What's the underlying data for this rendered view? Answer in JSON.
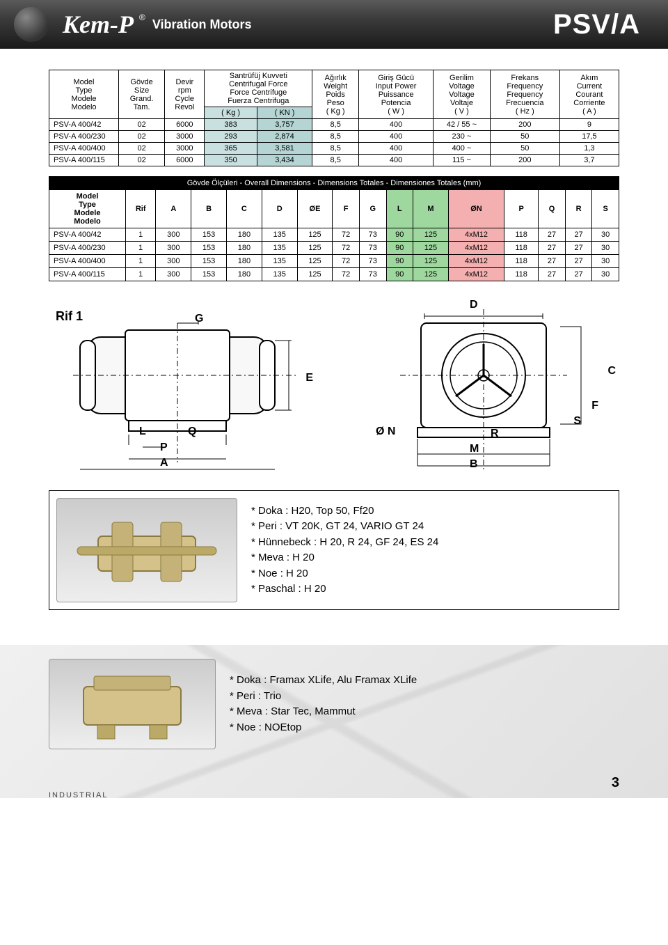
{
  "header": {
    "logo": "Kem-P",
    "reg_mark": "®",
    "subtitle": "Vibration Motors",
    "product_code": "PSV/A"
  },
  "specs_table": {
    "header_rows": {
      "model": [
        "Model",
        "Type",
        "Modele",
        "Modelo"
      ],
      "size": [
        "Gövde",
        "Size",
        "Grand.",
        "Tam."
      ],
      "rpm": [
        "Devir",
        "rpm",
        "Cycle",
        "Revol"
      ],
      "force": [
        "Santrüfüj Kuvveti",
        "Centrifugal Force",
        "Force Centrifuge",
        "Fuerza Centrifuga"
      ],
      "force_units": [
        "( Kg )",
        "( KN )"
      ],
      "weight": [
        "Ağırlık",
        "Weight",
        "Poids",
        "Peso",
        "( Kg )"
      ],
      "power": [
        "Giriş Gücü",
        "Input Power",
        "Puissance",
        "Potencia",
        "( W )"
      ],
      "voltage": [
        "Gerilim",
        "Voltage",
        "Voltage",
        "Voltaje",
        "( V )"
      ],
      "freq": [
        "Frekans",
        "Frequency",
        "Frequency",
        "Frecuencia",
        "( Hz )"
      ],
      "current": [
        "Akım",
        "Current",
        "Courant",
        "Corriente",
        "( A )"
      ]
    },
    "rows": [
      {
        "model": "PSV-A 400/42",
        "size": "02",
        "rpm": "6000",
        "kg": "383",
        "kn": "3,757",
        "weight": "8,5",
        "power": "400",
        "voltage": "42 / 55 ~",
        "freq": "200",
        "current": "9"
      },
      {
        "model": "PSV-A 400/230",
        "size": "02",
        "rpm": "3000",
        "kg": "293",
        "kn": "2,874",
        "weight": "8,5",
        "power": "400",
        "voltage": "230 ~",
        "freq": "50",
        "current": "17,5"
      },
      {
        "model": "PSV-A 400/400",
        "size": "02",
        "rpm": "3000",
        "kg": "365",
        "kn": "3,581",
        "weight": "8,5",
        "power": "400",
        "voltage": "400 ~",
        "freq": "50",
        "current": "1,3"
      },
      {
        "model": "PSV-A 400/115",
        "size": "02",
        "rpm": "6000",
        "kg": "350",
        "kn": "3,434",
        "weight": "8,5",
        "power": "400",
        "voltage": "115 ~",
        "freq": "200",
        "current": "3,7"
      }
    ]
  },
  "dims_table": {
    "title": "Gövde Ölçüleri - Overall Dimensions - Dimensions Totales  - Dimensiones Totales (mm)",
    "model_header": [
      "Model",
      "Type",
      "Modele",
      "Modelo"
    ],
    "columns": [
      "Rif",
      "A",
      "B",
      "C",
      "D",
      "ØE",
      "F",
      "G",
      "L",
      "M",
      "ØN",
      "P",
      "Q",
      "R",
      "S"
    ],
    "rows": [
      {
        "model": "PSV-A 400/42",
        "vals": [
          "1",
          "300",
          "153",
          "180",
          "135",
          "125",
          "72",
          "73",
          "90",
          "125",
          "4xM12",
          "118",
          "27",
          "27",
          "30"
        ]
      },
      {
        "model": "PSV-A 400/230",
        "vals": [
          "1",
          "300",
          "153",
          "180",
          "135",
          "125",
          "72",
          "73",
          "90",
          "125",
          "4xM12",
          "118",
          "27",
          "27",
          "30"
        ]
      },
      {
        "model": "PSV-A 400/400",
        "vals": [
          "1",
          "300",
          "153",
          "180",
          "135",
          "125",
          "72",
          "73",
          "90",
          "125",
          "4xM12",
          "118",
          "27",
          "27",
          "30"
        ]
      },
      {
        "model": "PSV-A 400/115",
        "vals": [
          "1",
          "300",
          "153",
          "180",
          "135",
          "125",
          "72",
          "73",
          "90",
          "125",
          "4xM12",
          "118",
          "27",
          "27",
          "30"
        ]
      }
    ]
  },
  "diagram_labels": {
    "rif": "Rif 1",
    "left": [
      "G",
      "E",
      "L",
      "Q",
      "P",
      "A"
    ],
    "right": [
      "D",
      "C",
      "F",
      "Ø N",
      "S",
      "R",
      "M",
      "B"
    ]
  },
  "compat1": {
    "lines": [
      "* Doka : H20, Top 50, Ff20",
      "* Peri : VT 20K, GT 24, VARIO GT 24",
      "* Hünnebeck : H 20, R 24, GF 24, ES 24",
      "* Meva : H 20",
      "* Noe : H 20",
      "* Paschal : H 20"
    ]
  },
  "compat2": {
    "lines": [
      "* Doka : Framax XLife, Alu Framax XLife",
      "* Peri : Trio",
      "* Meva : Star Tec, Mammut",
      "* Noe : NOEtop"
    ]
  },
  "footer": {
    "industrial": "INDUSTRIAL",
    "page": "3"
  },
  "colors": {
    "header_grad_top": "#5a5a5a",
    "header_grad_bot": "#1a1a1a",
    "kg_col": "#c9e0e0",
    "kn_col": "#b5d5d5",
    "lm_col": "#9fd89f",
    "on_col": "#f4b0b0",
    "dim_title_bg": "#000000",
    "dim_title_fg": "#ffffff"
  }
}
